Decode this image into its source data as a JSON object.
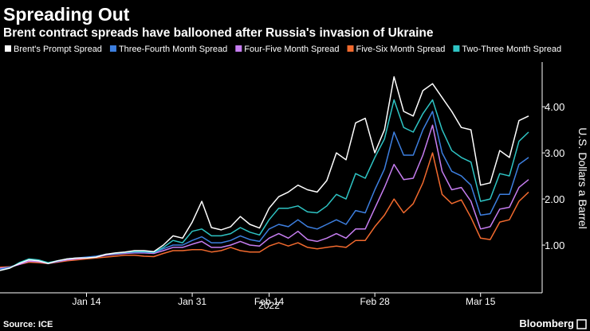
{
  "chart_data": {
    "type": "line",
    "title": "Spreading Out",
    "subtitle": "Brent contract spreads have ballooned after Russia's invasion of Ukraine",
    "y_axis_label": "U.S. Dollars a Barrel",
    "x_sublabel": "2022",
    "source": "Source: ICE",
    "brand": "Bloomberg",
    "categories": [
      null,
      null,
      null,
      null,
      null,
      null,
      null,
      null,
      null,
      "Jan 14",
      null,
      null,
      null,
      null,
      null,
      null,
      null,
      null,
      null,
      null,
      "Jan 31",
      null,
      null,
      null,
      null,
      null,
      null,
      null,
      "Feb 14",
      null,
      null,
      null,
      null,
      null,
      null,
      null,
      null,
      null,
      null,
      "Feb 28",
      null,
      null,
      null,
      null,
      null,
      null,
      null,
      null,
      null,
      null,
      "Mar 15",
      null,
      null,
      null,
      null,
      null
    ],
    "ylim": [
      0,
      4.9
    ],
    "yticks": [
      {
        "value": 1,
        "label": "1.00"
      },
      {
        "value": 2,
        "label": "2.00"
      },
      {
        "value": 3,
        "label": "3.00"
      },
      {
        "value": 4,
        "label": "4.00"
      }
    ],
    "y_axis_side": "right",
    "legend": "top",
    "series": [
      {
        "name": "Brent's Prompt Spread",
        "color": "#ffffff",
        "values": [
          0.45,
          0.5,
          0.6,
          0.68,
          0.66,
          0.6,
          0.66,
          0.7,
          0.72,
          0.72,
          0.74,
          0.8,
          0.83,
          0.85,
          0.88,
          0.88,
          0.86,
          1.0,
          1.2,
          1.15,
          1.5,
          1.95,
          1.38,
          1.33,
          1.4,
          1.62,
          1.45,
          1.37,
          1.8,
          2.05,
          2.15,
          2.3,
          2.2,
          2.15,
          2.4,
          3.0,
          2.85,
          3.65,
          3.75,
          3.0,
          3.5,
          4.65,
          3.9,
          3.8,
          4.35,
          4.5,
          4.2,
          3.9,
          3.55,
          3.5,
          2.3,
          2.35,
          3.05,
          2.9,
          3.7,
          3.8
        ]
      },
      {
        "name": "Three-Fourth Month Spread",
        "color": "#3d7fe0",
        "values": [
          0.48,
          0.52,
          0.6,
          0.68,
          0.66,
          0.6,
          0.65,
          0.7,
          0.72,
          0.74,
          0.76,
          0.8,
          0.82,
          0.84,
          0.85,
          0.85,
          0.84,
          0.92,
          1.0,
          1.0,
          1.1,
          1.18,
          1.05,
          1.05,
          1.1,
          1.2,
          1.12,
          1.08,
          1.35,
          1.45,
          1.4,
          1.55,
          1.4,
          1.35,
          1.45,
          1.55,
          1.45,
          1.75,
          1.7,
          2.2,
          2.65,
          3.45,
          2.95,
          2.95,
          3.5,
          3.9,
          3.0,
          2.6,
          2.5,
          2.3,
          1.65,
          1.68,
          2.1,
          2.1,
          2.75,
          2.9
        ]
      },
      {
        "name": "Four-Five Month Spread",
        "color": "#c77ef2",
        "values": [
          0.5,
          0.52,
          0.58,
          0.65,
          0.64,
          0.6,
          0.64,
          0.68,
          0.7,
          0.72,
          0.74,
          0.78,
          0.8,
          0.82,
          0.83,
          0.83,
          0.82,
          0.88,
          0.95,
          0.95,
          1.02,
          1.08,
          0.95,
          0.95,
          1.0,
          1.08,
          1.0,
          0.98,
          1.15,
          1.25,
          1.15,
          1.3,
          1.12,
          1.08,
          1.15,
          1.25,
          1.15,
          1.35,
          1.35,
          1.8,
          2.25,
          2.75,
          2.42,
          2.45,
          2.95,
          3.6,
          2.6,
          2.2,
          2.25,
          1.95,
          1.35,
          1.4,
          1.78,
          1.82,
          2.25,
          2.42
        ]
      },
      {
        "name": "Five-Six Month Spread",
        "color": "#f26a2e",
        "values": [
          0.52,
          0.53,
          0.58,
          0.63,
          0.62,
          0.6,
          0.63,
          0.66,
          0.68,
          0.7,
          0.72,
          0.74,
          0.76,
          0.78,
          0.78,
          0.76,
          0.75,
          0.82,
          0.88,
          0.88,
          0.9,
          0.9,
          0.85,
          0.88,
          0.95,
          0.88,
          0.85,
          0.85,
          0.98,
          1.05,
          0.98,
          1.05,
          0.95,
          0.92,
          0.95,
          0.98,
          0.95,
          1.1,
          1.1,
          1.4,
          1.65,
          2.0,
          1.7,
          1.9,
          2.35,
          3.0,
          2.1,
          1.9,
          1.98,
          1.6,
          1.15,
          1.12,
          1.5,
          1.55,
          1.95,
          2.15
        ]
      },
      {
        "name": "Two-Three Month Spread",
        "color": "#2ec4c4",
        "values": [
          0.45,
          0.5,
          0.62,
          0.7,
          0.68,
          0.62,
          0.66,
          0.7,
          0.72,
          0.72,
          0.74,
          0.8,
          0.82,
          0.84,
          0.86,
          0.86,
          0.84,
          0.95,
          1.1,
          1.05,
          1.3,
          1.35,
          1.2,
          1.2,
          1.25,
          1.38,
          1.28,
          1.22,
          1.55,
          1.8,
          1.8,
          1.85,
          1.72,
          1.7,
          1.85,
          2.1,
          2.0,
          2.55,
          2.45,
          2.9,
          3.3,
          4.15,
          3.55,
          3.45,
          3.85,
          4.15,
          3.5,
          3.05,
          2.9,
          2.8,
          1.95,
          2.0,
          2.55,
          2.5,
          3.25,
          3.45
        ]
      }
    ]
  }
}
